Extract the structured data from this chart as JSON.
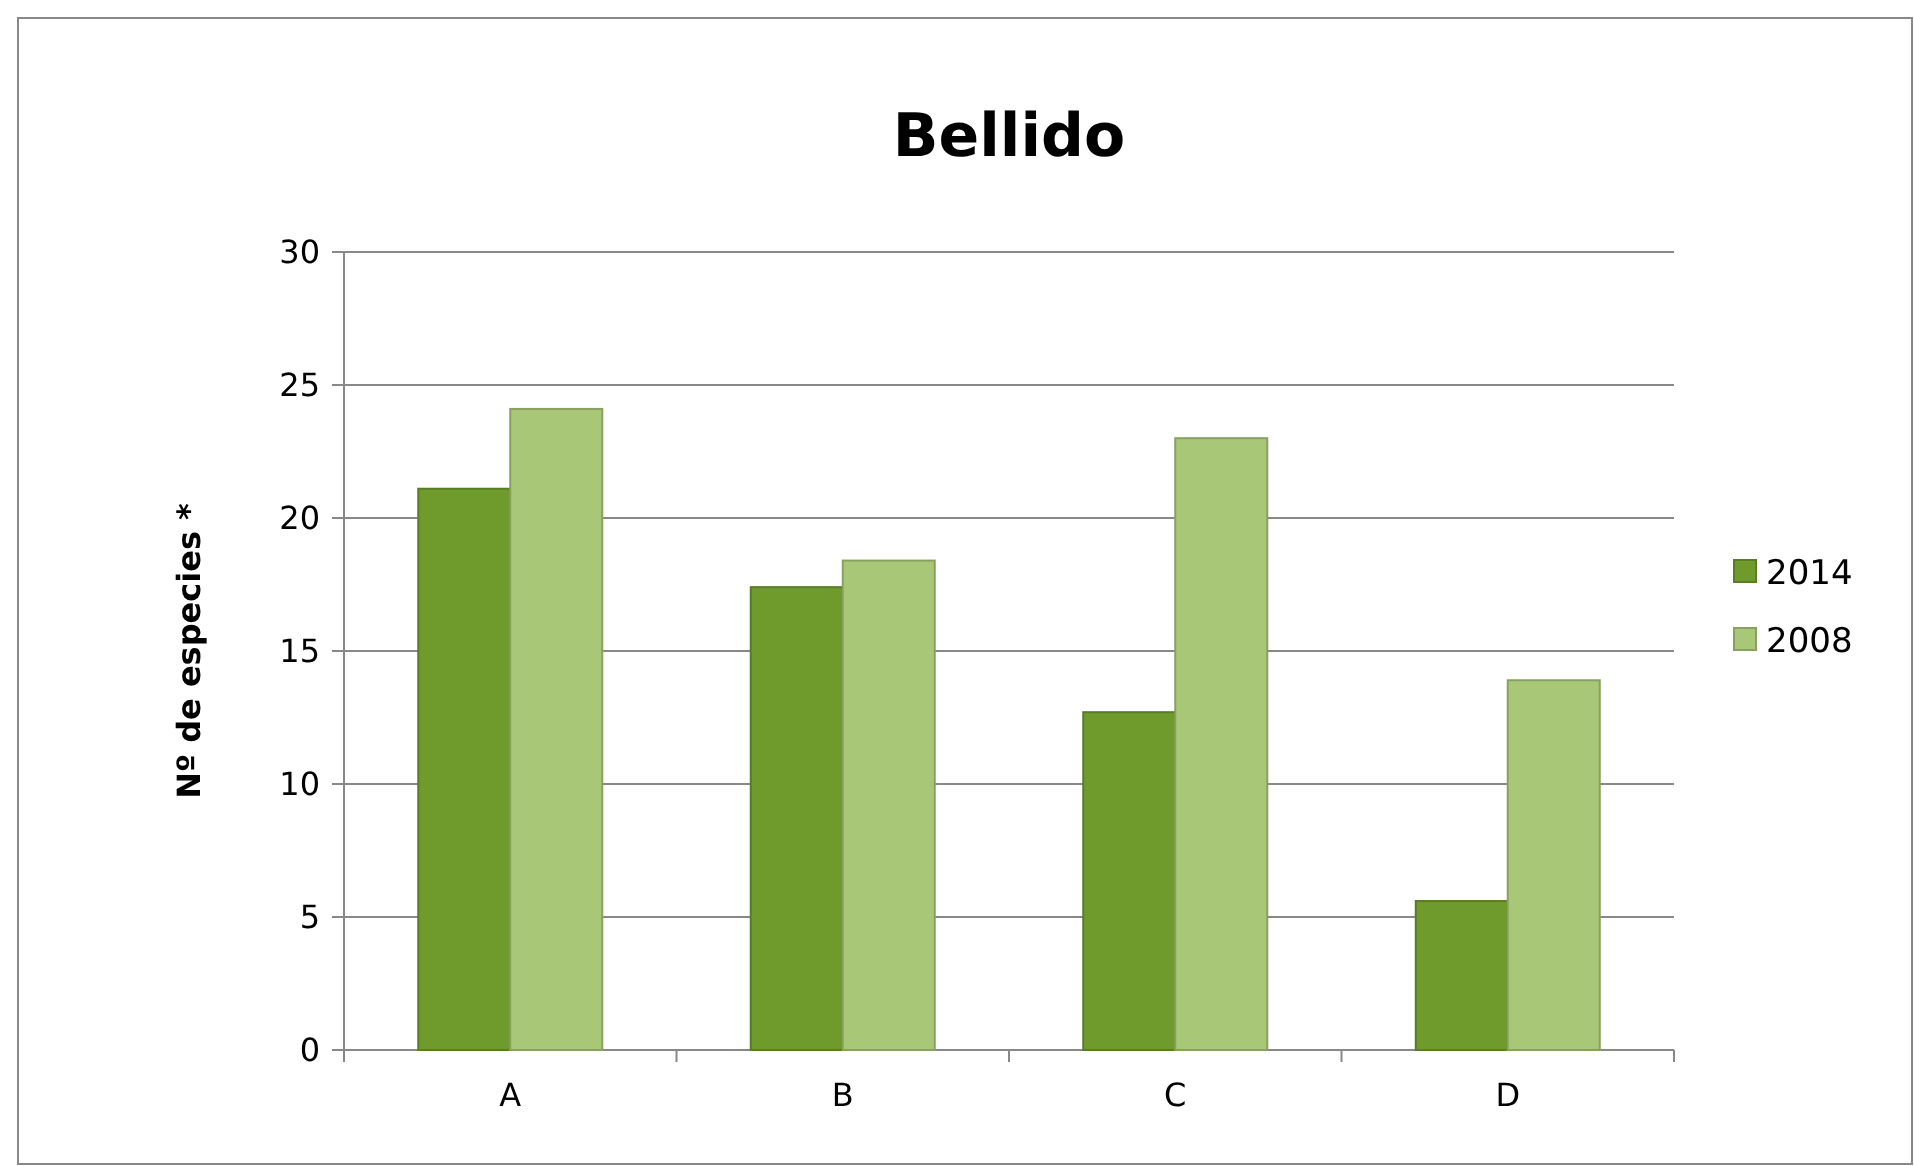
{
  "chart_data": {
    "type": "bar",
    "title": "Bellido",
    "ylabel": "Nº de especies *",
    "categories": [
      "A",
      "B",
      "C",
      "D"
    ],
    "series": [
      {
        "name": "2014",
        "color": "#6f9a2c",
        "values": [
          21.1,
          17.4,
          12.7,
          5.6
        ]
      },
      {
        "name": "2008",
        "color": "#a8c878",
        "values": [
          24.1,
          18.4,
          23,
          13.9
        ]
      }
    ],
    "ylim": [
      0,
      30
    ],
    "yticks": [
      0,
      5,
      10,
      15,
      20,
      25,
      30
    ],
    "grid": "y",
    "legend": "right"
  }
}
